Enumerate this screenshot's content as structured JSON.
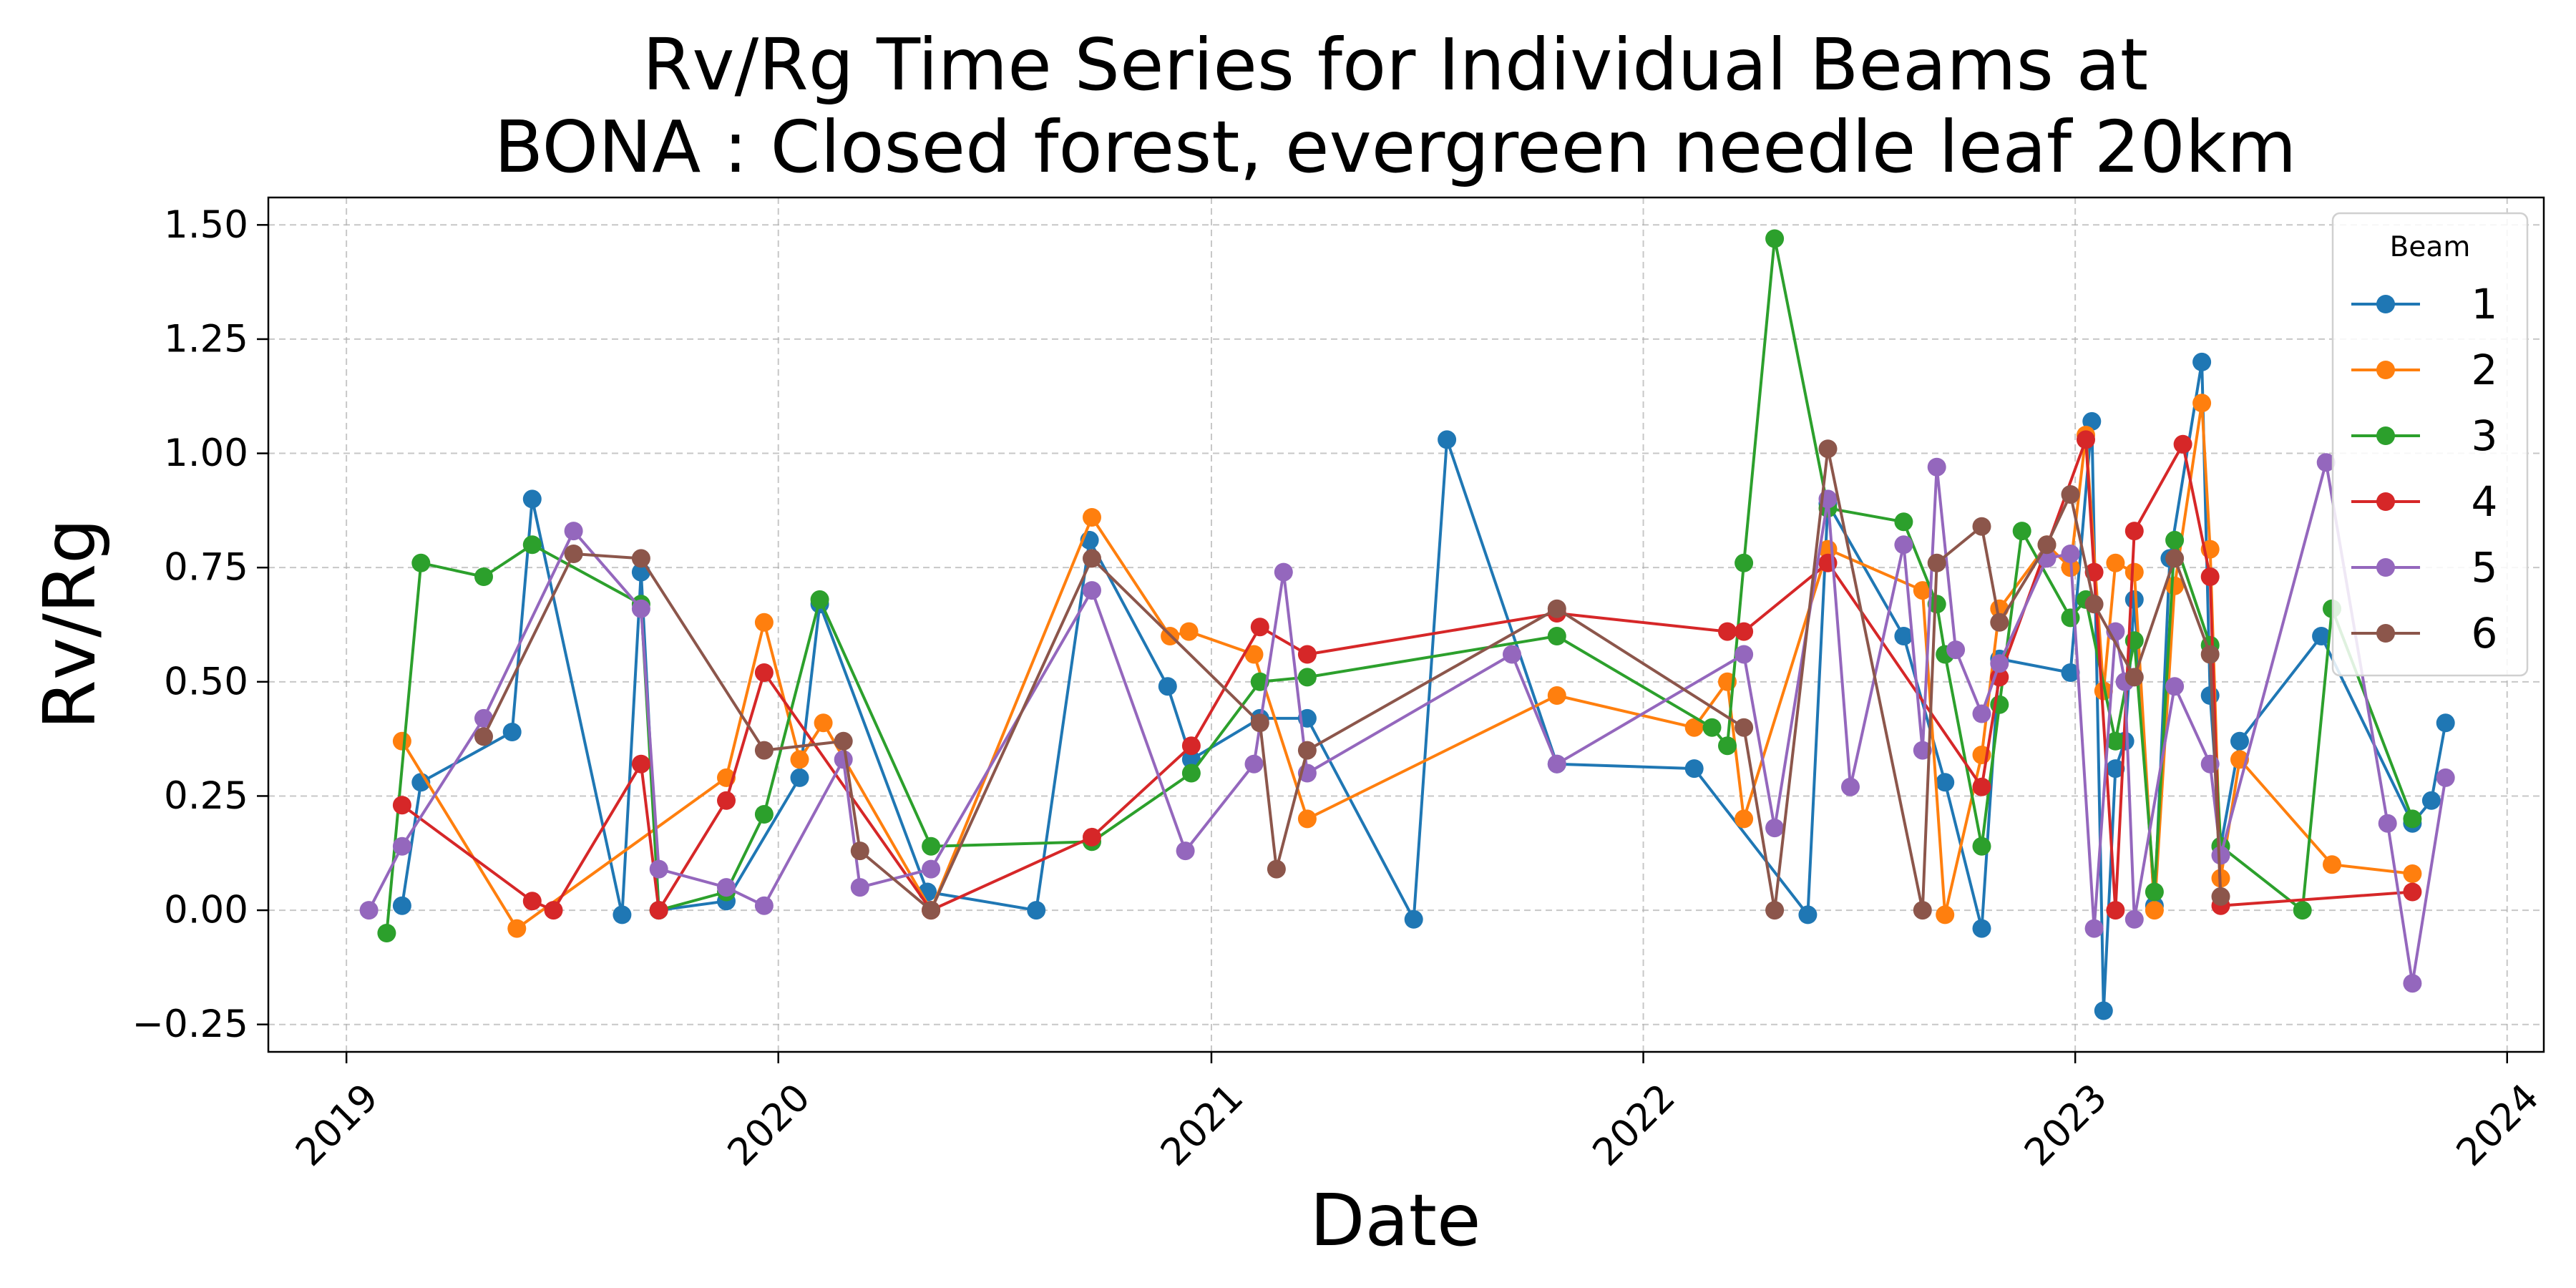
{
  "chart_data": {
    "type": "line",
    "title_lines": [
      "Rv/Rg Time Series for Individual Beams at",
      "BONA : Closed forest, evergreen needle leaf 20km"
    ],
    "xlabel": "Date",
    "ylabel": "Rv/Rg",
    "x_ticks": [
      "2019",
      "2020",
      "2021",
      "2022",
      "2023",
      "2024"
    ],
    "y_ticks": [
      "−0.25",
      "0.00",
      "0.25",
      "0.50",
      "0.75",
      "1.00",
      "1.25",
      "1.50"
    ],
    "xlim": [
      "2018-10-27",
      "2024-02-01"
    ],
    "ylim": [
      -0.31,
      1.56
    ],
    "grid": true,
    "legend": {
      "title": "Beam",
      "position": "top-right"
    },
    "series": [
      {
        "name": "1",
        "color": "#1f77b4",
        "points": [
          [
            "2019-02-17",
            0.01
          ],
          [
            "2019-03-05",
            0.28
          ],
          [
            "2019-05-21",
            0.39
          ],
          [
            "2019-06-07",
            0.9
          ],
          [
            "2019-08-22",
            -0.01
          ],
          [
            "2019-09-07",
            0.74
          ],
          [
            "2019-09-22",
            0.0
          ],
          [
            "2019-11-18",
            0.02
          ],
          [
            "2020-01-19",
            0.29
          ],
          [
            "2020-02-05",
            0.67
          ],
          [
            "2020-05-06",
            0.04
          ],
          [
            "2020-08-06",
            0.0
          ],
          [
            "2020-09-20",
            0.81
          ],
          [
            "2020-11-25",
            0.49
          ],
          [
            "2020-12-15",
            0.33
          ],
          [
            "2021-02-11",
            0.42
          ],
          [
            "2021-03-23",
            0.42
          ],
          [
            "2021-06-21",
            -0.02
          ],
          [
            "2021-07-19",
            1.03
          ],
          [
            "2021-10-20",
            0.32
          ],
          [
            "2022-02-13",
            0.31
          ],
          [
            "2022-05-20",
            -0.01
          ],
          [
            "2022-06-06",
            0.89
          ],
          [
            "2022-08-09",
            0.6
          ],
          [
            "2022-09-13",
            0.28
          ],
          [
            "2022-10-14",
            -0.04
          ],
          [
            "2022-10-29",
            0.55
          ],
          [
            "2022-12-28",
            0.52
          ],
          [
            "2023-01-15",
            1.07
          ],
          [
            "2023-01-25",
            -0.22
          ],
          [
            "2023-02-04",
            0.31
          ],
          [
            "2023-02-12",
            0.37
          ],
          [
            "2023-02-20",
            0.68
          ],
          [
            "2023-03-09",
            0.01
          ],
          [
            "2023-03-22",
            0.77
          ],
          [
            "2023-04-18",
            1.2
          ],
          [
            "2023-04-25",
            0.47
          ],
          [
            "2023-05-04",
            0.14
          ],
          [
            "2023-05-20",
            0.37
          ],
          [
            "2023-07-28",
            0.6
          ],
          [
            "2023-10-13",
            0.19
          ],
          [
            "2023-10-29",
            0.24
          ],
          [
            "2023-11-10",
            0.41
          ]
        ]
      },
      {
        "name": "2",
        "color": "#ff7f0e",
        "points": [
          [
            "2019-02-17",
            0.37
          ],
          [
            "2019-05-25",
            -0.04
          ],
          [
            "2019-11-18",
            0.29
          ],
          [
            "2019-12-20",
            0.63
          ],
          [
            "2020-01-19",
            0.33
          ],
          [
            "2020-02-08",
            0.41
          ],
          [
            "2020-05-09",
            0.0
          ],
          [
            "2020-09-22",
            0.86
          ],
          [
            "2020-11-27",
            0.6
          ],
          [
            "2020-12-13",
            0.61
          ],
          [
            "2021-02-06",
            0.56
          ],
          [
            "2021-03-23",
            0.2
          ],
          [
            "2021-10-20",
            0.47
          ],
          [
            "2022-02-13",
            0.4
          ],
          [
            "2022-03-13",
            0.5
          ],
          [
            "2022-03-27",
            0.2
          ],
          [
            "2022-06-06",
            0.79
          ],
          [
            "2022-08-25",
            0.7
          ],
          [
            "2022-09-13",
            -0.01
          ],
          [
            "2022-10-14",
            0.34
          ],
          [
            "2022-10-29",
            0.66
          ],
          [
            "2022-12-08",
            0.8
          ],
          [
            "2022-12-28",
            0.75
          ],
          [
            "2023-01-10",
            1.04
          ],
          [
            "2023-01-25",
            0.48
          ],
          [
            "2023-02-04",
            0.76
          ],
          [
            "2023-02-20",
            0.74
          ],
          [
            "2023-03-09",
            0.0
          ],
          [
            "2023-03-26",
            0.71
          ],
          [
            "2023-04-18",
            1.11
          ],
          [
            "2023-04-25",
            0.79
          ],
          [
            "2023-05-04",
            0.07
          ],
          [
            "2023-05-20",
            0.33
          ],
          [
            "2023-08-06",
            0.1
          ],
          [
            "2023-10-13",
            0.08
          ]
        ]
      },
      {
        "name": "3",
        "color": "#2ca02c",
        "points": [
          [
            "2019-02-04",
            -0.05
          ],
          [
            "2019-03-05",
            0.76
          ],
          [
            "2019-04-27",
            0.73
          ],
          [
            "2019-06-07",
            0.8
          ],
          [
            "2019-09-07",
            0.67
          ],
          [
            "2019-09-22",
            0.0
          ],
          [
            "2019-11-18",
            0.04
          ],
          [
            "2019-12-20",
            0.21
          ],
          [
            "2020-02-05",
            0.68
          ],
          [
            "2020-05-09",
            0.14
          ],
          [
            "2020-09-22",
            0.15
          ],
          [
            "2020-12-15",
            0.3
          ],
          [
            "2021-02-11",
            0.5
          ],
          [
            "2021-03-23",
            0.51
          ],
          [
            "2021-10-20",
            0.6
          ],
          [
            "2022-02-28",
            0.4
          ],
          [
            "2022-03-13",
            0.36
          ],
          [
            "2022-03-27",
            0.76
          ],
          [
            "2022-04-22",
            1.47
          ],
          [
            "2022-06-06",
            0.88
          ],
          [
            "2022-08-09",
            0.85
          ],
          [
            "2022-09-06",
            0.67
          ],
          [
            "2022-09-13",
            0.56
          ],
          [
            "2022-10-14",
            0.14
          ],
          [
            "2022-10-29",
            0.45
          ],
          [
            "2022-11-17",
            0.83
          ],
          [
            "2022-12-28",
            0.64
          ],
          [
            "2023-01-10",
            0.68
          ],
          [
            "2023-02-04",
            0.37
          ],
          [
            "2023-02-20",
            0.59
          ],
          [
            "2023-03-09",
            0.04
          ],
          [
            "2023-03-26",
            0.81
          ],
          [
            "2023-04-25",
            0.58
          ],
          [
            "2023-05-04",
            0.14
          ],
          [
            "2023-07-12",
            0.0
          ],
          [
            "2023-08-06",
            0.66
          ],
          [
            "2023-10-13",
            0.2
          ]
        ]
      },
      {
        "name": "4",
        "color": "#d62728",
        "points": [
          [
            "2019-02-17",
            0.23
          ],
          [
            "2019-06-07",
            0.02
          ],
          [
            "2019-06-25",
            0.0
          ],
          [
            "2019-09-07",
            0.32
          ],
          [
            "2019-09-22",
            0.0
          ],
          [
            "2019-11-18",
            0.24
          ],
          [
            "2019-12-20",
            0.52
          ],
          [
            "2020-05-09",
            0.0
          ],
          [
            "2020-09-22",
            0.16
          ],
          [
            "2020-12-15",
            0.36
          ],
          [
            "2021-02-11",
            0.62
          ],
          [
            "2021-03-23",
            0.56
          ],
          [
            "2021-10-20",
            0.65
          ],
          [
            "2022-03-13",
            0.61
          ],
          [
            "2022-03-27",
            0.61
          ],
          [
            "2022-06-06",
            0.76
          ],
          [
            "2022-10-14",
            0.27
          ],
          [
            "2022-10-29",
            0.51
          ],
          [
            "2023-01-10",
            1.03
          ],
          [
            "2023-01-17",
            0.74
          ],
          [
            "2023-02-04",
            0.0
          ],
          [
            "2023-02-20",
            0.83
          ],
          [
            "2023-04-02",
            1.02
          ],
          [
            "2023-04-25",
            0.73
          ],
          [
            "2023-05-04",
            0.01
          ],
          [
            "2023-10-13",
            0.04
          ]
        ]
      },
      {
        "name": "5",
        "color": "#9467bd",
        "points": [
          [
            "2019-01-20",
            0.0
          ],
          [
            "2019-02-17",
            0.14
          ],
          [
            "2019-04-27",
            0.42
          ],
          [
            "2019-07-12",
            0.83
          ],
          [
            "2019-09-07",
            0.66
          ],
          [
            "2019-09-22",
            0.09
          ],
          [
            "2019-11-18",
            0.05
          ],
          [
            "2019-12-20",
            0.01
          ],
          [
            "2020-02-25",
            0.33
          ],
          [
            "2020-03-10",
            0.05
          ],
          [
            "2020-05-09",
            0.09
          ],
          [
            "2020-09-22",
            0.7
          ],
          [
            "2020-12-10",
            0.13
          ],
          [
            "2021-02-06",
            0.32
          ],
          [
            "2021-03-03",
            0.74
          ],
          [
            "2021-03-23",
            0.3
          ],
          [
            "2021-09-12",
            0.56
          ],
          [
            "2021-10-20",
            0.32
          ],
          [
            "2022-03-27",
            0.56
          ],
          [
            "2022-04-22",
            0.18
          ],
          [
            "2022-06-06",
            0.9
          ],
          [
            "2022-06-25",
            0.27
          ],
          [
            "2022-08-09",
            0.8
          ],
          [
            "2022-08-25",
            0.35
          ],
          [
            "2022-09-06",
            0.97
          ],
          [
            "2022-09-22",
            0.57
          ],
          [
            "2022-10-14",
            0.43
          ],
          [
            "2022-10-29",
            0.54
          ],
          [
            "2022-12-08",
            0.77
          ],
          [
            "2022-12-28",
            0.78
          ],
          [
            "2023-01-17",
            -0.04
          ],
          [
            "2023-02-04",
            0.61
          ],
          [
            "2023-02-12",
            0.5
          ],
          [
            "2023-02-20",
            -0.02
          ],
          [
            "2023-03-26",
            0.49
          ],
          [
            "2023-04-25",
            0.32
          ],
          [
            "2023-05-04",
            0.12
          ],
          [
            "2023-08-01",
            0.98
          ],
          [
            "2023-09-22",
            0.19
          ],
          [
            "2023-10-13",
            -0.16
          ],
          [
            "2023-11-10",
            0.29
          ]
        ]
      },
      {
        "name": "6",
        "color": "#8c564b",
        "points": [
          [
            "2019-04-27",
            0.38
          ],
          [
            "2019-07-12",
            0.78
          ],
          [
            "2019-09-07",
            0.77
          ],
          [
            "2019-12-20",
            0.35
          ],
          [
            "2020-02-25",
            0.37
          ],
          [
            "2020-03-10",
            0.13
          ],
          [
            "2020-05-09",
            0.0
          ],
          [
            "2020-09-22",
            0.77
          ],
          [
            "2021-02-11",
            0.41
          ],
          [
            "2021-02-25",
            0.09
          ],
          [
            "2021-03-23",
            0.35
          ],
          [
            "2021-10-20",
            0.66
          ],
          [
            "2022-03-27",
            0.4
          ],
          [
            "2022-04-22",
            0.0
          ],
          [
            "2022-06-06",
            1.01
          ],
          [
            "2022-08-25",
            0.0
          ],
          [
            "2022-09-06",
            0.76
          ],
          [
            "2022-10-14",
            0.84
          ],
          [
            "2022-10-29",
            0.63
          ],
          [
            "2022-12-08",
            0.8
          ],
          [
            "2022-12-28",
            0.91
          ],
          [
            "2023-01-17",
            0.67
          ],
          [
            "2023-02-20",
            0.51
          ],
          [
            "2023-03-26",
            0.77
          ],
          [
            "2023-04-25",
            0.56
          ],
          [
            "2023-05-04",
            0.03
          ]
        ]
      }
    ]
  }
}
